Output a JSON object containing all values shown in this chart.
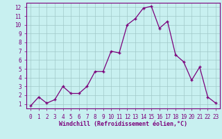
{
  "x": [
    0,
    1,
    2,
    3,
    4,
    5,
    6,
    7,
    8,
    9,
    10,
    11,
    12,
    13,
    14,
    15,
    16,
    17,
    18,
    19,
    20,
    21,
    22,
    23
  ],
  "y": [
    0.8,
    1.8,
    1.1,
    1.5,
    3.0,
    2.2,
    2.2,
    3.0,
    4.7,
    4.7,
    7.0,
    6.8,
    10.0,
    10.7,
    11.9,
    12.1,
    9.6,
    10.4,
    6.6,
    5.8,
    3.7,
    5.2,
    1.8,
    1.1
  ],
  "line_color": "#7b007b",
  "marker": "+",
  "marker_color": "#7b007b",
  "bg_color": "#c8f0f0",
  "grid_color": "#a0c8c8",
  "xlabel": "Windchill (Refroidissement éolien,°C)",
  "xlabel_color": "#7b007b",
  "tick_color": "#7b007b",
  "ylim": [
    0.5,
    12.5
  ],
  "xlim": [
    -0.5,
    23.5
  ],
  "yticks": [
    1,
    2,
    3,
    4,
    5,
    6,
    7,
    8,
    9,
    10,
    11,
    12
  ],
  "xticks": [
    0,
    1,
    2,
    3,
    4,
    5,
    6,
    7,
    8,
    9,
    10,
    11,
    12,
    13,
    14,
    15,
    16,
    17,
    18,
    19,
    20,
    21,
    22,
    23
  ],
  "border_color": "#7b007b",
  "tick_fontsize": 5.5,
  "xlabel_fontsize": 6.0
}
